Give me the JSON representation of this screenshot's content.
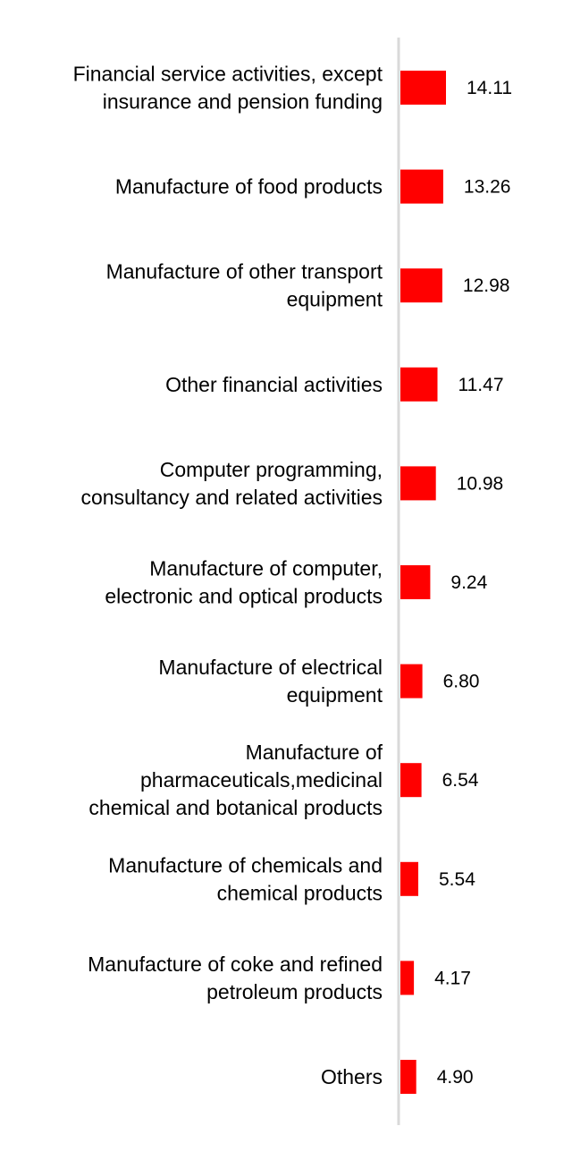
{
  "chart_data": {
    "type": "bar",
    "orientation": "horizontal",
    "title": "",
    "xlabel": "",
    "ylabel": "",
    "categories": [
      "Financial service activities, except insurance and pension funding",
      "Manufacture of food products",
      "Manufacture of other transport equipment",
      "Other financial activities",
      "Computer programming, consultancy and related activities",
      "Manufacture of computer, electronic and optical products",
      "Manufacture of electrical equipment",
      "Manufacture of pharmaceuticals,medicinal chemical and botanical products",
      "Manufacture of chemicals and chemical products",
      "Manufacture of coke and refined petroleum products",
      "Others"
    ],
    "label_lines": [
      [
        "Financial service activities, except",
        "insurance and pension funding"
      ],
      [
        "Manufacture of food products"
      ],
      [
        "Manufacture of other transport",
        "equipment"
      ],
      [
        "Other financial activities"
      ],
      [
        "Computer programming,",
        "consultancy and related activities"
      ],
      [
        "Manufacture of computer,",
        "electronic and optical products"
      ],
      [
        "Manufacture of electrical",
        "equipment"
      ],
      [
        "Manufacture of",
        "pharmaceuticals,medicinal",
        "chemical and botanical products"
      ],
      [
        "Manufacture of chemicals and",
        "chemical products"
      ],
      [
        "Manufacture of coke and refined",
        "petroleum products"
      ],
      [
        "Others"
      ]
    ],
    "values": [
      14.11,
      13.26,
      12.98,
      11.47,
      10.98,
      9.24,
      6.8,
      6.54,
      5.54,
      4.17,
      4.9
    ],
    "value_labels": [
      "14.11",
      "13.26",
      "12.98",
      "11.47",
      "10.98",
      "9.24",
      "6.80",
      "6.54",
      "5.54",
      "4.17",
      "4.90"
    ],
    "xlim": [
      0,
      14.11
    ],
    "bar_color": "#ff0000",
    "axis_color": "#d9d9d9",
    "grid": false,
    "legend": "none"
  }
}
